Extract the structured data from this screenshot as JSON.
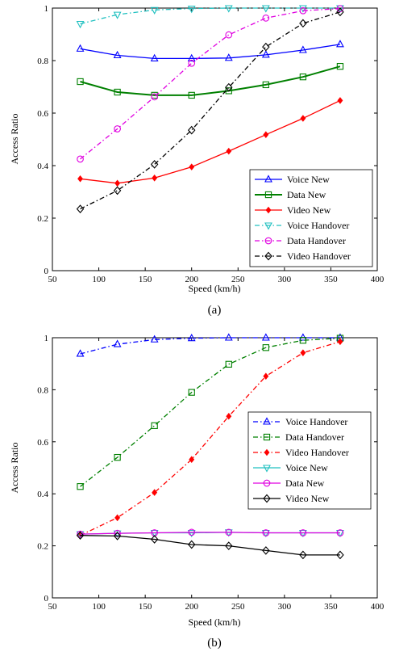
{
  "chart_data": [
    {
      "type": "line",
      "caption": "(a)",
      "xlabel": "Speed (km/h)",
      "ylabel": "Access Ratio",
      "xlim": [
        50,
        400
      ],
      "ylim": [
        0,
        1
      ],
      "xticks": [
        "50",
        "100",
        "150",
        "200",
        "250",
        "300",
        "350",
        "400"
      ],
      "yticks": [
        "0",
        "0.2",
        "0.4",
        "0.6",
        "0.8",
        "1"
      ],
      "grid": false,
      "legend_position": "bottom-right",
      "x": [
        80,
        120,
        160,
        200,
        240,
        280,
        320,
        360
      ],
      "series": [
        {
          "name": "Voice New",
          "color": "#0000ff",
          "dash": "solid",
          "marker": "triangle-up",
          "width": 1.3,
          "values": [
            0.845,
            0.82,
            0.808,
            0.808,
            0.81,
            0.822,
            0.84,
            0.862
          ]
        },
        {
          "name": "Data New",
          "color": "#008000",
          "dash": "solid",
          "marker": "square",
          "width": 2,
          "values": [
            0.72,
            0.68,
            0.668,
            0.668,
            0.685,
            0.708,
            0.738,
            0.778
          ]
        },
        {
          "name": "Video New",
          "color": "#ff0000",
          "dash": "solid",
          "marker": "diamond-filled",
          "width": 1.3,
          "values": [
            0.35,
            0.333,
            0.353,
            0.395,
            0.455,
            0.518,
            0.58,
            0.648
          ]
        },
        {
          "name": "Voice Handover",
          "color": "#20c0c0",
          "dash": "dashdot",
          "marker": "triangle-down",
          "width": 1.3,
          "values": [
            0.94,
            0.975,
            0.993,
            0.998,
            1.0,
            1.0,
            1.0,
            1.0
          ]
        },
        {
          "name": "Data Handover",
          "color": "#e000e0",
          "dash": "dashdot",
          "marker": "circle",
          "width": 1.3,
          "values": [
            0.425,
            0.54,
            0.662,
            0.79,
            0.898,
            0.962,
            0.99,
            0.998
          ]
        },
        {
          "name": "Video Handover",
          "color": "#000000",
          "dash": "dashdot",
          "marker": "diamond",
          "width": 1.3,
          "values": [
            0.235,
            0.305,
            0.405,
            0.535,
            0.698,
            0.852,
            0.942,
            0.985
          ]
        }
      ]
    },
    {
      "type": "line",
      "caption": "(b)",
      "xlabel": "Speed (km/h)",
      "ylabel": "Access Ratio",
      "xlim": [
        50,
        400
      ],
      "ylim": [
        0,
        1
      ],
      "xticks": [
        "50",
        "100",
        "150",
        "200",
        "250",
        "300",
        "350",
        "400"
      ],
      "yticks": [
        "0",
        "0.2",
        "0.4",
        "0.6",
        "0.8",
        "1"
      ],
      "grid": false,
      "legend_position": "right-middle",
      "x": [
        80,
        120,
        160,
        200,
        240,
        280,
        320,
        360
      ],
      "series": [
        {
          "name": "Voice Handover",
          "color": "#0000ff",
          "dash": "dashdot",
          "marker": "triangle-up",
          "width": 1.3,
          "values": [
            0.938,
            0.975,
            0.993,
            0.998,
            1.0,
            1.0,
            1.0,
            1.0
          ]
        },
        {
          "name": "Data Handover",
          "color": "#008000",
          "dash": "dashdot",
          "marker": "square",
          "width": 1.3,
          "values": [
            0.428,
            0.54,
            0.662,
            0.79,
            0.898,
            0.962,
            0.99,
            0.998
          ]
        },
        {
          "name": "Video Handover",
          "color": "#ff0000",
          "dash": "dashdot",
          "marker": "diamond-filled",
          "width": 1.3,
          "values": [
            0.24,
            0.308,
            0.405,
            0.532,
            0.698,
            0.852,
            0.942,
            0.985
          ]
        },
        {
          "name": "Voice New",
          "color": "#20c0c0",
          "dash": "solid",
          "marker": "triangle-down",
          "width": 1.3,
          "values": [
            0.245,
            0.248,
            0.25,
            0.25,
            0.252,
            0.25,
            0.25,
            0.25
          ]
        },
        {
          "name": "Data New",
          "color": "#e000e0",
          "dash": "solid",
          "marker": "circle",
          "width": 1.3,
          "values": [
            0.245,
            0.248,
            0.25,
            0.252,
            0.252,
            0.25,
            0.25,
            0.25
          ]
        },
        {
          "name": "Video New",
          "color": "#000000",
          "dash": "solid",
          "marker": "diamond",
          "width": 1.3,
          "values": [
            0.24,
            0.238,
            0.225,
            0.205,
            0.2,
            0.182,
            0.165,
            0.165
          ]
        }
      ]
    }
  ]
}
